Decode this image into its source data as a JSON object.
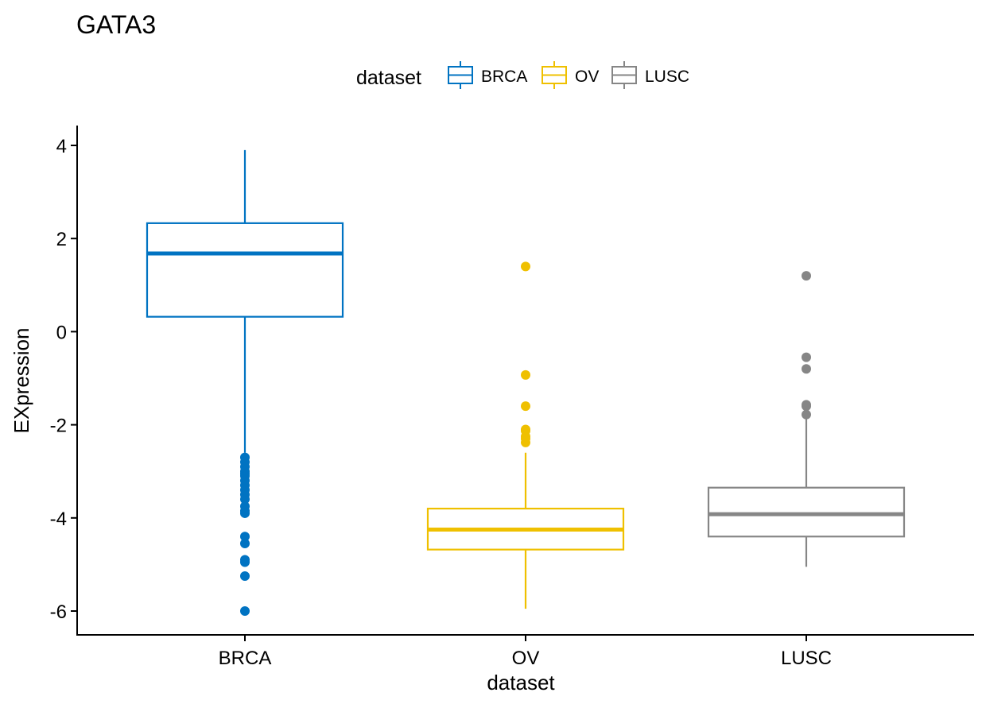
{
  "chart_data": {
    "type": "box",
    "title": "GATA3",
    "xlabel": "dataset",
    "ylabel": "EXpression",
    "ylim": [
      -6.5,
      4.4
    ],
    "yticks": [
      4,
      2,
      0,
      -2,
      -4,
      -6
    ],
    "ytick_labels": [
      "4",
      "2",
      "0",
      "-2",
      "-4",
      "-6"
    ],
    "grid": false,
    "legend": {
      "title": "dataset",
      "position": "top",
      "entries": [
        {
          "label": "BRCA",
          "color": "#0073C2"
        },
        {
          "label": "OV",
          "color": "#EFC000"
        },
        {
          "label": "LUSC",
          "color": "#868686"
        }
      ]
    },
    "categories": [
      "BRCA",
      "OV",
      "LUSC"
    ],
    "boxes": [
      {
        "category": "BRCA",
        "color": "#0073C2",
        "whisker_low": -2.6,
        "q1": 0.32,
        "median": 1.68,
        "q3": 2.33,
        "whisker_high": 3.9,
        "outliers": [
          -2.7,
          -2.8,
          -2.9,
          -3.0,
          -3.05,
          -3.1,
          -3.2,
          -3.3,
          -3.4,
          -3.5,
          -3.6,
          -3.75,
          -3.85,
          -3.9,
          -4.4,
          -4.55,
          -4.9,
          -4.95,
          -5.25,
          -6.0
        ]
      },
      {
        "category": "OV",
        "color": "#EFC000",
        "whisker_low": -5.95,
        "q1": -4.68,
        "median": -4.25,
        "q3": -3.8,
        "whisker_high": -2.6,
        "outliers": [
          1.4,
          -0.93,
          -1.6,
          -2.1,
          -2.13,
          -2.25,
          -2.3,
          -2.38
        ]
      },
      {
        "category": "LUSC",
        "color": "#868686",
        "whisker_low": -5.05,
        "q1": -4.4,
        "median": -3.92,
        "q3": -3.35,
        "whisker_high": -1.85,
        "outliers": [
          1.2,
          -0.55,
          -0.8,
          -1.57,
          -1.6,
          -1.78
        ]
      }
    ]
  }
}
